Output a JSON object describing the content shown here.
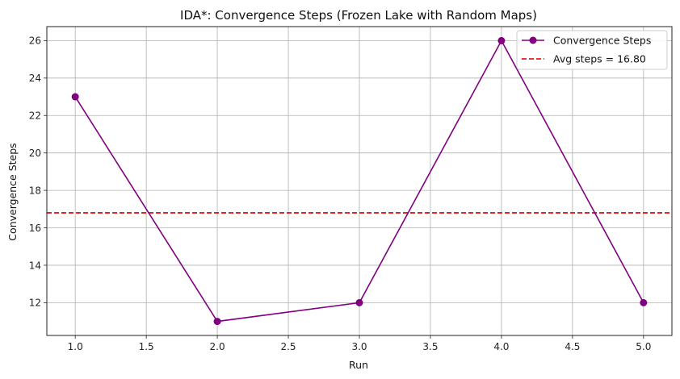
{
  "chart_data": {
    "type": "line",
    "title": "IDA*: Convergence Steps (Frozen Lake with Random Maps)",
    "xlabel": "Run",
    "ylabel": "Convergence Steps",
    "x": [
      1,
      2,
      3,
      4,
      5
    ],
    "series": [
      {
        "name": "Convergence Steps",
        "values": [
          23,
          11,
          12,
          26,
          12
        ],
        "color": "#800080",
        "marker": "circle"
      }
    ],
    "reference_line": {
      "name": "Avg steps = 16.80",
      "value": 16.8,
      "color": "#e41a1c",
      "style": "dashed"
    },
    "xlim": [
      0.8,
      5.2
    ],
    "ylim": [
      10.25,
      26.75
    ],
    "xticks": [
      "1.0",
      "1.5",
      "2.0",
      "2.5",
      "3.0",
      "3.5",
      "4.0",
      "4.5",
      "5.0"
    ],
    "yticks": [
      "12",
      "14",
      "16",
      "18",
      "20",
      "22",
      "24",
      "26"
    ],
    "grid": true,
    "legend_position": "top-right"
  }
}
